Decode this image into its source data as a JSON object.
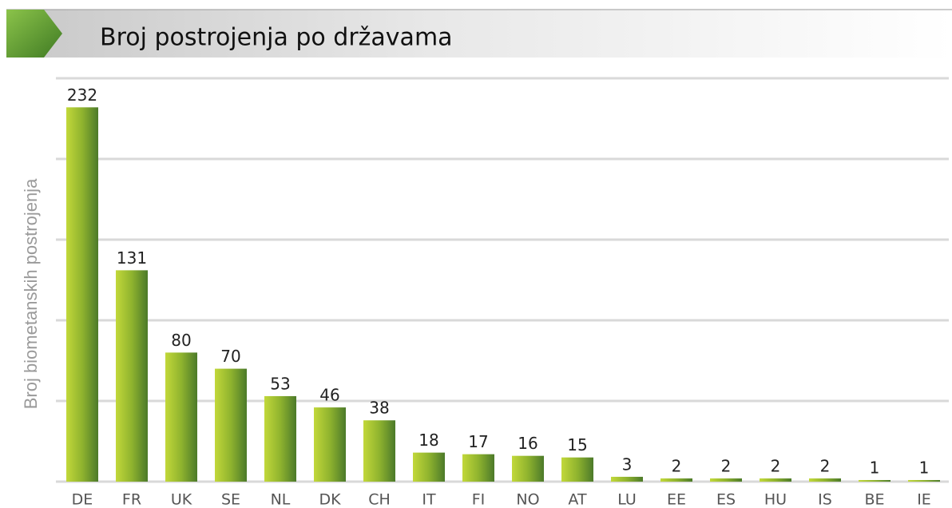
{
  "chart_data": {
    "type": "bar",
    "title": "Broj postrojenja po državama",
    "ylabel": "Broj biometanskih postrojenja",
    "categories": [
      "DE",
      "FR",
      "UK",
      "SE",
      "NL",
      "DK",
      "CH",
      "IT",
      "FI",
      "NO",
      "AT",
      "LU",
      "EE",
      "ES",
      "HU",
      "IS",
      "BE",
      "IE"
    ],
    "values": [
      232,
      131,
      80,
      70,
      53,
      46,
      38,
      18,
      17,
      16,
      15,
      3,
      2,
      2,
      2,
      2,
      1,
      1
    ],
    "color": "#6e9a2c",
    "ylim": [
      0,
      250
    ],
    "yticks": [
      0,
      50,
      100,
      150,
      200,
      250
    ],
    "grid": true
  }
}
